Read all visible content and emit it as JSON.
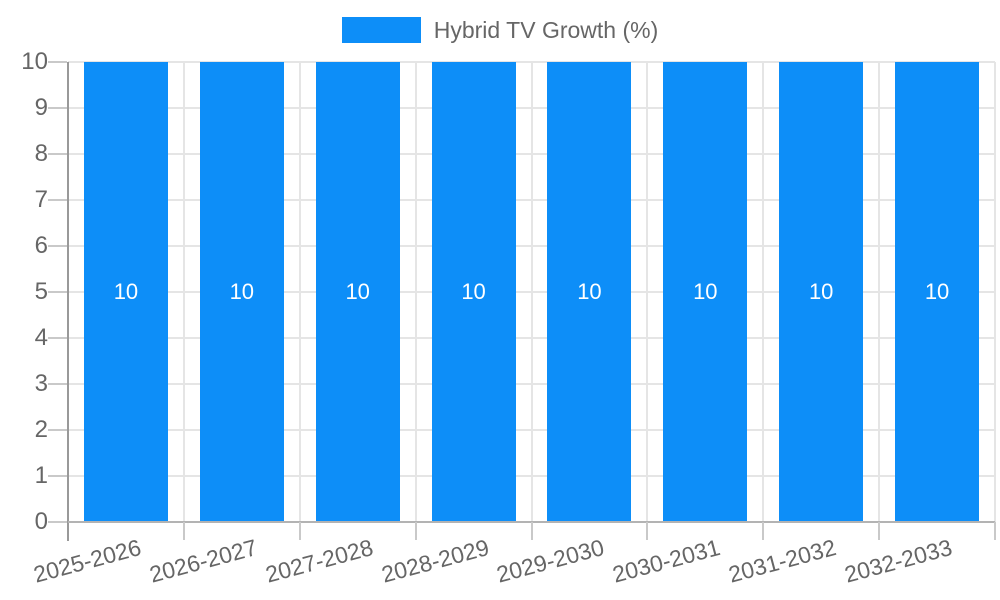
{
  "chart_data": {
    "type": "bar",
    "title": "",
    "xlabel": "",
    "ylabel": "",
    "legend": {
      "position": "top",
      "items": [
        {
          "label": "Hybrid TV Growth (%)",
          "color": "#0d8ef8"
        }
      ]
    },
    "categories": [
      "2025-2026",
      "2026-2027",
      "2027-2028",
      "2028-2029",
      "2029-2030",
      "2030-2031",
      "2031-2032",
      "2032-2033"
    ],
    "series": [
      {
        "name": "Hybrid TV Growth (%)",
        "color": "#0d8ef8",
        "values": [
          10,
          10,
          10,
          10,
          10,
          10,
          10,
          10
        ]
      }
    ],
    "bar_value_labels": [
      "10",
      "10",
      "10",
      "10",
      "10",
      "10",
      "10",
      "10"
    ],
    "ylim": [
      0,
      10
    ],
    "yticks": [
      0,
      1,
      2,
      3,
      4,
      5,
      6,
      7,
      8,
      9,
      10
    ],
    "grid": true,
    "x_labels_rotated": true
  },
  "colors": {
    "bar": "#0d8ef8",
    "axis_text": "#666666",
    "bar_label_text": "#ffffff",
    "gridline": "#e5e5e5",
    "y_axis_line": "#999999",
    "x_axis_line": "#b3b3b3",
    "tick_mark": "#c9c9c9"
  }
}
